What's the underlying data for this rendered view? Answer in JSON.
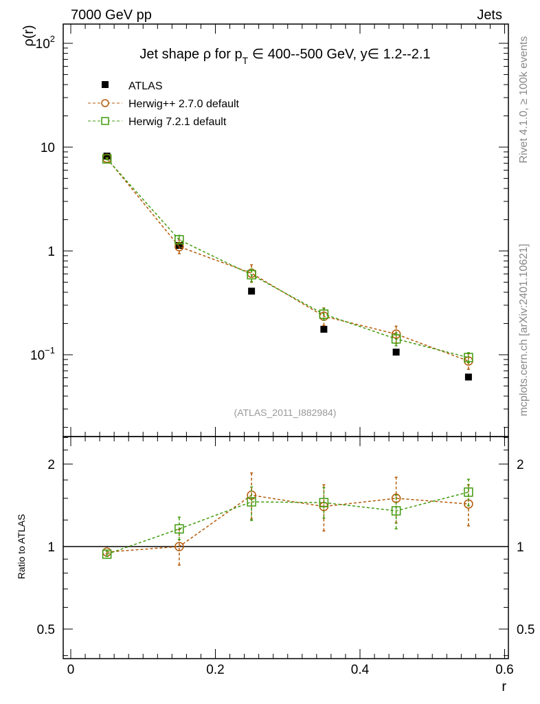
{
  "header": {
    "left": "7000 GeV pp",
    "right": "Jets"
  },
  "side_labels": {
    "rivet": "Rivet 4.1.0, ≥ 100k events",
    "mcplots": "mcplots.cern.ch [arXiv:2401.10621]"
  },
  "chart_data": [
    {
      "type": "scatter",
      "title": "Jet shape ρ for p_T ∈ 400--500 GeV, y∈ 1.2--2.1",
      "title_parts": {
        "a": "Jet shape ρ for p",
        "sub": "T",
        "b": " ∈ 400--500 GeV, y∈ 1.2--2.1"
      },
      "ylabel": "ρ(r)",
      "yscale": "log",
      "ylim": [
        0.016,
        150
      ],
      "xlim": [
        -0.01,
        0.605
      ],
      "yticks": [
        {
          "v": 100,
          "base": "10",
          "exp": "2"
        },
        {
          "v": 10,
          "base": "10",
          "exp": ""
        },
        {
          "v": 1,
          "base": "1",
          "exp": ""
        },
        {
          "v": 0.1,
          "base": "10",
          "exp": "−1"
        }
      ],
      "annotation": "(ATLAS_2011_I882984)",
      "legend_position": "top-left",
      "x": [
        0.05,
        0.15,
        0.25,
        0.35,
        0.45,
        0.55
      ],
      "series": [
        {
          "name": "ATLAS",
          "color": "#000000",
          "marker": "filled-square",
          "values": [
            8.2,
            1.13,
            0.41,
            0.176,
            0.106,
            0.061
          ]
        },
        {
          "name": "Herwig++ 2.7.0 default",
          "color": "#b35806",
          "marker": "open-circle",
          "values": [
            7.8,
            1.1,
            0.61,
            0.235,
            0.158,
            0.087
          ]
        },
        {
          "name": "Herwig 7.2.1 default",
          "color": "#3f9a0c",
          "marker": "open-square",
          "values": [
            7.7,
            1.28,
            0.59,
            0.246,
            0.142,
            0.094
          ]
        }
      ]
    },
    {
      "type": "scatter",
      "ylabel": "Ratio to ATLAS",
      "xlabel": "r",
      "yscale": "log",
      "ylim": [
        0.39,
        2.52
      ],
      "xlim": [
        -0.01,
        0.605
      ],
      "yticks": [
        "2",
        "1",
        "0.5"
      ],
      "ytick_values": [
        2,
        1,
        0.5
      ],
      "xticks": [
        "0",
        "0.2",
        "0.4",
        "0.6"
      ],
      "xtick_values": [
        0,
        0.2,
        0.4,
        0.6
      ],
      "reference_line": 1,
      "x": [
        0.05,
        0.15,
        0.25,
        0.35,
        0.45,
        0.55
      ],
      "series": [
        {
          "name": "Herwig++ 2.7.0 default",
          "color": "#b35806",
          "marker": "open-circle",
          "values": [
            0.955,
            1.0,
            1.54,
            1.4,
            1.5,
            1.43
          ],
          "lo": [
            0.94,
            0.856,
            1.26,
            1.14,
            1.22,
            1.19
          ],
          "hi": [
            0.97,
            1.155,
            1.856,
            1.68,
            1.79,
            1.68
          ]
        },
        {
          "name": "Herwig 7.2.1 default",
          "color": "#3f9a0c",
          "marker": "open-square",
          "values": [
            0.938,
            1.16,
            1.456,
            1.447,
            1.35,
            1.58
          ],
          "lo": [
            0.92,
            1.06,
            1.245,
            1.27,
            1.16,
            1.41
          ],
          "hi": [
            0.96,
            1.28,
            1.65,
            1.64,
            1.54,
            1.76
          ]
        }
      ]
    }
  ]
}
